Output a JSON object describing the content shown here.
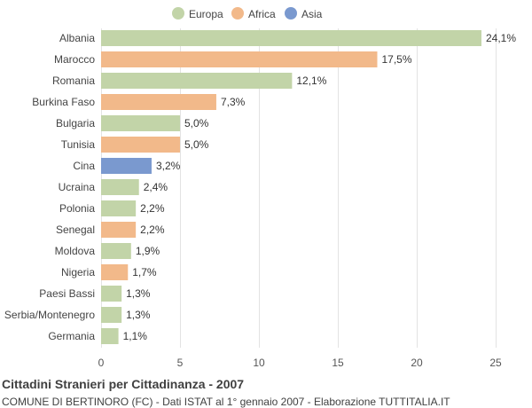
{
  "chart_data": {
    "type": "bar",
    "orientation": "horizontal",
    "title": "Cittadini Stranieri per Cittadinanza - 2007",
    "subtitle": "COMUNE DI BERTINORO (FC) - Dati ISTAT al 1° gennaio 2007 - Elaborazione TUTTITALIA.IT",
    "legend": {
      "placement": "top-center",
      "items": [
        {
          "name": "Europa",
          "color": "#c2d4a8"
        },
        {
          "name": "Africa",
          "color": "#f2b98a"
        },
        {
          "name": "Asia",
          "color": "#7a99cf"
        }
      ]
    },
    "categories": [
      "Albania",
      "Marocco",
      "Romania",
      "Burkina Faso",
      "Bulgaria",
      "Tunisia",
      "Cina",
      "Ucraina",
      "Polonia",
      "Senegal",
      "Moldova",
      "Nigeria",
      "Paesi Bassi",
      "Serbia/Montenegro",
      "Germania"
    ],
    "values": [
      24.1,
      17.5,
      12.1,
      7.3,
      5.0,
      5.0,
      3.2,
      2.4,
      2.2,
      2.2,
      1.9,
      1.7,
      1.3,
      1.3,
      1.1
    ],
    "value_labels": [
      "24,1%",
      "17,5%",
      "12,1%",
      "7,3%",
      "5,0%",
      "5,0%",
      "3,2%",
      "2,4%",
      "2,2%",
      "2,2%",
      "1,9%",
      "1,7%",
      "1,3%",
      "1,3%",
      "1,1%"
    ],
    "groups": [
      "Europa",
      "Africa",
      "Europa",
      "Africa",
      "Europa",
      "Africa",
      "Asia",
      "Europa",
      "Europa",
      "Africa",
      "Europa",
      "Africa",
      "Europa",
      "Europa",
      "Europa"
    ],
    "xlim": [
      0,
      25
    ],
    "xticks": [
      0,
      5,
      10,
      15,
      20,
      25
    ],
    "grid": true
  }
}
